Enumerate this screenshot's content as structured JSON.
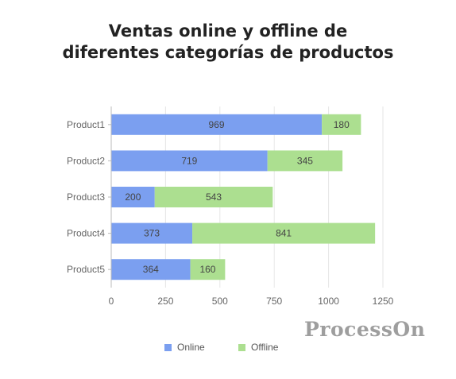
{
  "colors": {
    "online": "#7b9ff0",
    "offline": "#acdf90",
    "grid": "#e6e6e6",
    "axis": "#bbbbbb",
    "label": "#666666",
    "value_label": "#444444"
  },
  "watermark": "ProcessOn",
  "chart_data": {
    "type": "bar",
    "orientation": "horizontal",
    "stacked": true,
    "title": [
      "Ventas online y offline de",
      "diferentes categorías de productos"
    ],
    "categories": [
      "Product1",
      "Product2",
      "Product3",
      "Product4",
      "Product5"
    ],
    "series": [
      {
        "name": "Online",
        "values": [
          969,
          719,
          200,
          373,
          364
        ]
      },
      {
        "name": "Offline",
        "values": [
          180,
          345,
          543,
          841,
          160
        ]
      }
    ],
    "x_ticks": [
      "0",
      "250",
      "500",
      "750",
      "1000",
      "1250"
    ],
    "xlim": [
      0,
      1250
    ],
    "grid": true,
    "legend": "bottom"
  }
}
